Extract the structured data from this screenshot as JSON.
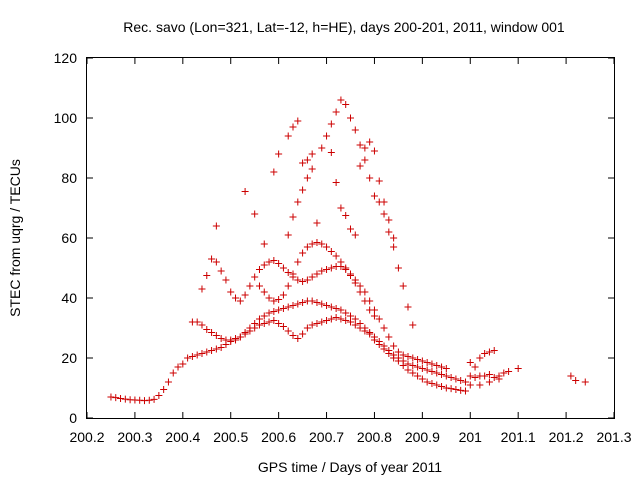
{
  "chart_data": {
    "type": "scatter",
    "title": "Rec. savo (Lon=321, Lat=-12, h=HE), days 200-201, 2011, window 001",
    "xlabel": "GPS time / Days of year 2011",
    "ylabel": "STEC from uqrg / TECUs",
    "xlim": [
      200.2,
      201.3
    ],
    "ylim": [
      0,
      120
    ],
    "xticks": [
      "200.2",
      "200.3",
      "200.4",
      "200.5",
      "200.6",
      "200.7",
      "200.8",
      "200.9",
      "201",
      "201.1",
      "201.2",
      "201.3"
    ],
    "yticks": [
      "0",
      "20",
      "40",
      "60",
      "80",
      "100",
      "120"
    ],
    "grid": false,
    "marker": "+",
    "color": "#cc0000",
    "series": [
      {
        "name": "STEC",
        "points": [
          [
            200.25,
            7
          ],
          [
            200.26,
            6.8
          ],
          [
            200.27,
            6.5
          ],
          [
            200.28,
            6.3
          ],
          [
            200.29,
            6.1
          ],
          [
            200.3,
            6.0
          ],
          [
            200.31,
            5.9
          ],
          [
            200.32,
            5.8
          ],
          [
            200.33,
            5.9
          ],
          [
            200.34,
            6.2
          ],
          [
            200.35,
            7.5
          ],
          [
            200.36,
            9.5
          ],
          [
            200.37,
            12
          ],
          [
            200.38,
            15
          ],
          [
            200.39,
            17
          ],
          [
            200.4,
            18
          ],
          [
            200.41,
            20
          ],
          [
            200.42,
            20.5
          ],
          [
            200.43,
            21
          ],
          [
            200.44,
            21.5
          ],
          [
            200.45,
            22
          ],
          [
            200.46,
            22.5
          ],
          [
            200.47,
            23
          ],
          [
            200.48,
            23.5
          ],
          [
            200.49,
            24.5
          ],
          [
            200.5,
            25.5
          ],
          [
            200.51,
            26
          ],
          [
            200.52,
            27
          ],
          [
            200.53,
            28
          ],
          [
            200.54,
            29
          ],
          [
            200.55,
            30
          ],
          [
            200.56,
            31
          ],
          [
            200.57,
            31.5
          ],
          [
            200.58,
            32
          ],
          [
            200.59,
            32.5
          ],
          [
            200.6,
            31.5
          ],
          [
            200.61,
            30.5
          ],
          [
            200.62,
            29
          ],
          [
            200.63,
            27.5
          ],
          [
            200.64,
            26.5
          ],
          [
            200.65,
            28
          ],
          [
            200.66,
            30
          ],
          [
            200.67,
            31
          ],
          [
            200.68,
            31.5
          ],
          [
            200.69,
            32
          ],
          [
            200.7,
            32.5
          ],
          [
            200.71,
            33
          ],
          [
            200.72,
            33.5
          ],
          [
            200.73,
            33
          ],
          [
            200.74,
            32.5
          ],
          [
            200.75,
            32
          ],
          [
            200.76,
            31
          ],
          [
            200.77,
            30
          ],
          [
            200.78,
            29
          ],
          [
            200.79,
            28
          ],
          [
            200.8,
            26
          ],
          [
            200.81,
            24.5
          ],
          [
            200.82,
            23
          ],
          [
            200.83,
            21.5
          ],
          [
            200.84,
            20
          ],
          [
            200.85,
            19
          ],
          [
            200.86,
            17.5
          ],
          [
            200.87,
            16
          ],
          [
            200.88,
            15
          ],
          [
            200.89,
            14
          ],
          [
            200.9,
            13
          ],
          [
            200.91,
            12
          ],
          [
            200.92,
            11.5
          ],
          [
            200.93,
            11
          ],
          [
            200.94,
            10.5
          ],
          [
            200.95,
            10
          ],
          [
            200.96,
            9.8
          ],
          [
            200.97,
            9.5
          ],
          [
            200.98,
            9.2
          ],
          [
            200.99,
            9
          ],
          [
            200.42,
            32
          ],
          [
            200.43,
            32
          ],
          [
            200.44,
            31
          ],
          [
            200.45,
            29.5
          ],
          [
            200.46,
            28.5
          ],
          [
            200.47,
            27.5
          ],
          [
            200.48,
            26.5
          ],
          [
            200.49,
            26
          ],
          [
            200.5,
            26
          ],
          [
            200.51,
            26.5
          ],
          [
            200.52,
            27
          ],
          [
            200.53,
            28.5
          ],
          [
            200.54,
            30
          ],
          [
            200.55,
            31.5
          ],
          [
            200.56,
            33
          ],
          [
            200.57,
            34
          ],
          [
            200.58,
            35
          ],
          [
            200.59,
            35.5
          ],
          [
            200.6,
            36
          ],
          [
            200.61,
            36.5
          ],
          [
            200.62,
            37
          ],
          [
            200.63,
            37.5
          ],
          [
            200.64,
            38
          ],
          [
            200.65,
            38.5
          ],
          [
            200.66,
            39
          ],
          [
            200.67,
            39
          ],
          [
            200.68,
            38.5
          ],
          [
            200.69,
            38
          ],
          [
            200.7,
            37.5
          ],
          [
            200.71,
            37
          ],
          [
            200.72,
            36.5
          ],
          [
            200.73,
            36
          ],
          [
            200.74,
            35
          ],
          [
            200.75,
            34
          ],
          [
            200.76,
            33
          ],
          [
            200.77,
            31.5
          ],
          [
            200.78,
            30
          ],
          [
            200.79,
            28.5
          ],
          [
            200.8,
            27
          ],
          [
            200.81,
            25.5
          ],
          [
            200.82,
            24
          ],
          [
            200.83,
            22.5
          ],
          [
            200.84,
            21
          ],
          [
            200.85,
            20
          ],
          [
            200.86,
            19
          ],
          [
            200.87,
            18
          ],
          [
            200.88,
            17.5
          ],
          [
            200.89,
            17
          ],
          [
            200.9,
            16.5
          ],
          [
            200.91,
            16
          ],
          [
            200.92,
            15.5
          ],
          [
            200.93,
            15
          ],
          [
            200.94,
            14.5
          ],
          [
            200.95,
            14
          ],
          [
            200.96,
            13.5
          ],
          [
            200.97,
            13
          ],
          [
            200.98,
            12.5
          ],
          [
            200.99,
            12
          ],
          [
            200.44,
            43
          ],
          [
            200.45,
            47.5
          ],
          [
            200.46,
            53
          ],
          [
            200.47,
            52
          ],
          [
            200.48,
            49
          ],
          [
            200.49,
            46
          ],
          [
            200.5,
            42
          ],
          [
            200.51,
            40
          ],
          [
            200.52,
            39
          ],
          [
            200.53,
            41
          ],
          [
            200.54,
            44
          ],
          [
            200.55,
            47
          ],
          [
            200.56,
            49.5
          ],
          [
            200.57,
            51
          ],
          [
            200.58,
            52
          ],
          [
            200.59,
            52.5
          ],
          [
            200.6,
            51.5
          ],
          [
            200.61,
            50
          ],
          [
            200.62,
            48.5
          ],
          [
            200.63,
            47
          ],
          [
            200.64,
            46
          ],
          [
            200.65,
            45.5
          ],
          [
            200.66,
            46
          ],
          [
            200.67,
            47
          ],
          [
            200.68,
            48
          ],
          [
            200.69,
            49
          ],
          [
            200.7,
            49.5
          ],
          [
            200.71,
            50
          ],
          [
            200.72,
            50.5
          ],
          [
            200.73,
            50.5
          ],
          [
            200.74,
            49.5
          ],
          [
            200.75,
            48
          ],
          [
            200.76,
            46
          ],
          [
            200.77,
            44
          ],
          [
            200.78,
            42
          ],
          [
            200.79,
            39
          ],
          [
            200.8,
            36
          ],
          [
            200.81,
            33
          ],
          [
            200.82,
            30
          ],
          [
            200.83,
            27
          ],
          [
            200.84,
            24
          ],
          [
            200.85,
            22
          ],
          [
            200.86,
            21
          ],
          [
            200.87,
            20.5
          ],
          [
            200.88,
            20
          ],
          [
            200.89,
            19.5
          ],
          [
            200.9,
            19
          ],
          [
            200.91,
            18.5
          ],
          [
            200.92,
            18
          ],
          [
            200.93,
            17.5
          ],
          [
            200.94,
            17
          ],
          [
            200.95,
            16.5
          ],
          [
            200.47,
            64
          ],
          [
            200.53,
            75.5
          ],
          [
            200.55,
            68
          ],
          [
            200.57,
            58
          ],
          [
            200.59,
            82
          ],
          [
            200.6,
            88
          ],
          [
            200.62,
            94
          ],
          [
            200.63,
            97
          ],
          [
            200.64,
            99
          ],
          [
            200.65,
            85
          ],
          [
            200.66,
            86
          ],
          [
            200.67,
            88
          ],
          [
            200.68,
            65
          ],
          [
            200.69,
            90
          ],
          [
            200.7,
            94
          ],
          [
            200.71,
            98
          ],
          [
            200.72,
            102
          ],
          [
            200.73,
            106
          ],
          [
            200.74,
            104.5
          ],
          [
            200.75,
            100
          ],
          [
            200.76,
            96
          ],
          [
            200.77,
            91
          ],
          [
            200.78,
            86
          ],
          [
            200.79,
            80
          ],
          [
            200.8,
            74
          ],
          [
            200.81,
            72
          ],
          [
            200.82,
            68
          ],
          [
            200.83,
            62
          ],
          [
            200.84,
            57
          ],
          [
            200.85,
            50
          ],
          [
            200.86,
            44
          ],
          [
            200.87,
            37
          ],
          [
            200.88,
            31
          ],
          [
            200.56,
            44
          ],
          [
            200.57,
            42
          ],
          [
            200.58,
            40
          ],
          [
            200.59,
            39
          ],
          [
            200.6,
            39.5
          ],
          [
            200.61,
            41
          ],
          [
            200.62,
            44
          ],
          [
            200.63,
            48
          ],
          [
            200.64,
            52
          ],
          [
            200.65,
            55
          ],
          [
            200.66,
            57
          ],
          [
            200.67,
            58
          ],
          [
            200.68,
            58.5
          ],
          [
            200.69,
            58
          ],
          [
            200.7,
            57
          ],
          [
            200.71,
            55.5
          ],
          [
            200.72,
            54
          ],
          [
            200.73,
            52
          ],
          [
            200.74,
            50
          ],
          [
            200.75,
            47.5
          ],
          [
            200.76,
            45
          ],
          [
            200.77,
            42
          ],
          [
            200.78,
            39
          ],
          [
            200.79,
            36
          ],
          [
            200.8,
            34
          ],
          [
            200.62,
            61
          ],
          [
            200.63,
            67
          ],
          [
            200.64,
            72
          ],
          [
            200.65,
            76
          ],
          [
            200.66,
            80
          ],
          [
            200.67,
            83
          ],
          [
            200.71,
            88.5
          ],
          [
            200.72,
            78.5
          ],
          [
            200.73,
            70
          ],
          [
            200.74,
            67.5
          ],
          [
            200.75,
            63
          ],
          [
            200.76,
            61
          ],
          [
            200.77,
            84
          ],
          [
            200.78,
            90
          ],
          [
            200.79,
            92
          ],
          [
            200.8,
            89
          ],
          [
            200.81,
            79
          ],
          [
            200.82,
            72
          ],
          [
            200.83,
            66
          ],
          [
            200.84,
            60
          ],
          [
            201.0,
            18.5
          ],
          [
            201.01,
            17
          ],
          [
            201.02,
            20
          ],
          [
            201.03,
            21.5
          ],
          [
            201.04,
            22
          ],
          [
            201.05,
            22.5
          ],
          [
            201.0,
            14
          ],
          [
            201.01,
            13.5
          ],
          [
            201.02,
            14
          ],
          [
            201.03,
            14
          ],
          [
            201.04,
            14.5
          ],
          [
            201.05,
            13.5
          ],
          [
            201.06,
            14
          ],
          [
            201.07,
            15
          ],
          [
            201.08,
            15.5
          ],
          [
            201.1,
            16.5
          ],
          [
            201.0,
            11
          ],
          [
            201.02,
            11
          ],
          [
            201.04,
            12
          ],
          [
            201.06,
            13
          ],
          [
            201.21,
            14
          ],
          [
            201.22,
            12.5
          ],
          [
            201.24,
            12
          ]
        ]
      }
    ]
  }
}
